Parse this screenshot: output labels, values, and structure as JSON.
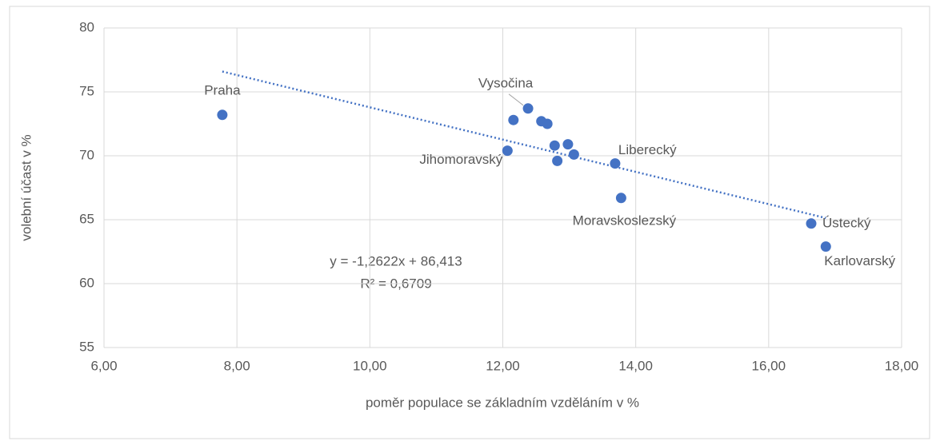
{
  "chart_data": {
    "type": "scatter",
    "x_label": "poměr populace se základním vzděláním v %",
    "y_label": "volební účast v %",
    "color": "#4472c4",
    "grid": true,
    "xlim": [
      6,
      18
    ],
    "ylim": [
      55,
      80
    ],
    "xticks": [
      {
        "value": 6,
        "label": "6,00"
      },
      {
        "value": 8,
        "label": "8,00"
      },
      {
        "value": 10,
        "label": "10,00"
      },
      {
        "value": 12,
        "label": "12,00"
      },
      {
        "value": 14,
        "label": "14,00"
      },
      {
        "value": 16,
        "label": "16,00"
      },
      {
        "value": 18,
        "label": "18,00"
      }
    ],
    "yticks": [
      55,
      60,
      65,
      70,
      75,
      80
    ],
    "x": [
      7.78,
      12.16,
      12.38,
      12.58,
      12.67,
      12.07,
      12.78,
      12.98,
      13.07,
      12.82,
      13.69,
      13.78,
      16.64,
      16.86
    ],
    "values": [
      73.2,
      72.8,
      73.7,
      72.7,
      72.5,
      70.4,
      70.8,
      70.9,
      70.1,
      69.6,
      69.4,
      66.7,
      64.7,
      62.9
    ],
    "labels": [
      "Praha",
      null,
      "Vysočina",
      null,
      null,
      "Jihomoravský",
      null,
      null,
      null,
      null,
      "Liberecký",
      "Moravskoslezský",
      "Ústecký",
      "Karlovarský"
    ],
    "trendline": {
      "slope": -1.2622,
      "intercept": 86.413,
      "equation": "y = -1,2622x + 86,413",
      "r_squared": "R² = 0,6709"
    }
  }
}
